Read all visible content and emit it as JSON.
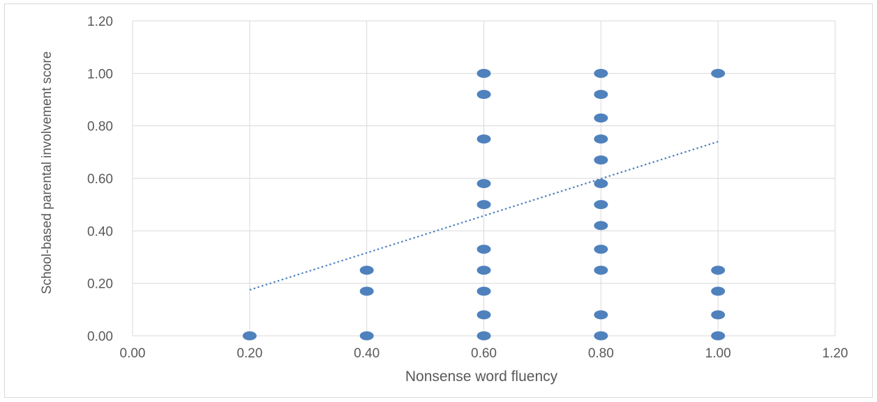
{
  "chart_data": {
    "type": "scatter",
    "title": "",
    "xlabel": "Nonsense word fluency",
    "ylabel": "School-based parental involvement score",
    "xlim": [
      0,
      1.2
    ],
    "ylim": [
      0,
      1.2
    ],
    "x_ticks": [
      "0.00",
      "0.20",
      "0.40",
      "0.60",
      "0.80",
      "1.00",
      "1.20"
    ],
    "y_ticks": [
      "0.00",
      "0.20",
      "0.40",
      "0.60",
      "0.80",
      "1.00",
      "1.20"
    ],
    "grid": "vertical and horizontal",
    "legend": "none",
    "series": [
      {
        "marker_color": "#4f81bd",
        "points": [
          [
            0.2,
            0.0
          ],
          [
            0.4,
            0.0
          ],
          [
            0.4,
            0.17
          ],
          [
            0.4,
            0.25
          ],
          [
            0.6,
            0.0
          ],
          [
            0.6,
            0.08
          ],
          [
            0.6,
            0.17
          ],
          [
            0.6,
            0.25
          ],
          [
            0.6,
            0.33
          ],
          [
            0.6,
            0.5
          ],
          [
            0.6,
            0.58
          ],
          [
            0.6,
            0.75
          ],
          [
            0.6,
            0.92
          ],
          [
            0.6,
            1.0
          ],
          [
            0.8,
            0.0
          ],
          [
            0.8,
            0.08
          ],
          [
            0.8,
            0.25
          ],
          [
            0.8,
            0.33
          ],
          [
            0.8,
            0.42
          ],
          [
            0.8,
            0.5
          ],
          [
            0.8,
            0.58
          ],
          [
            0.8,
            0.67
          ],
          [
            0.8,
            0.75
          ],
          [
            0.8,
            0.83
          ],
          [
            0.8,
            0.92
          ],
          [
            0.8,
            1.0
          ],
          [
            1.0,
            0.0
          ],
          [
            1.0,
            0.08
          ],
          [
            1.0,
            0.17
          ],
          [
            1.0,
            0.25
          ],
          [
            1.0,
            1.0
          ]
        ]
      }
    ],
    "trendline": {
      "style": "dotted",
      "color": "#4f81bd",
      "points": [
        [
          0.2,
          0.175
        ],
        [
          1.0,
          0.74
        ]
      ]
    }
  }
}
